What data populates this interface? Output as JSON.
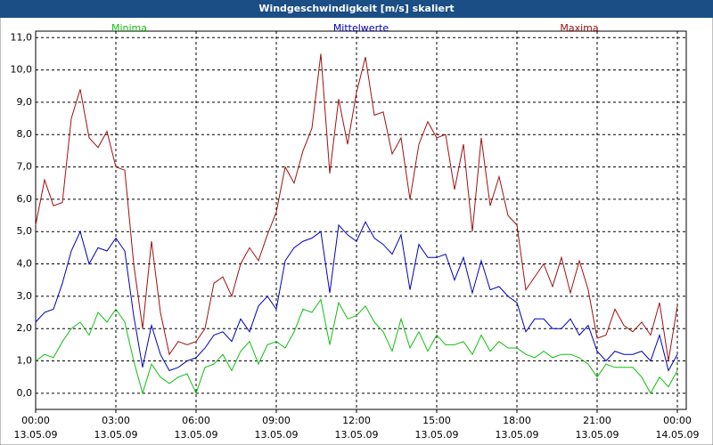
{
  "chart_data": {
    "type": "line",
    "title": "Windgeschwindigkeit [m/s] skaliert",
    "x": [
      0,
      20,
      40,
      60,
      80,
      100,
      120,
      140,
      160,
      180,
      200,
      220,
      240,
      260,
      280,
      300,
      320,
      340,
      360,
      380,
      400,
      420,
      440,
      460,
      480,
      500,
      520,
      540,
      560,
      580,
      600,
      620,
      640,
      660,
      680,
      700,
      720,
      740,
      760,
      780,
      800,
      820,
      840,
      860,
      880,
      900,
      920,
      940,
      960,
      980,
      1000,
      1020,
      1040,
      1060,
      1080,
      1100,
      1120,
      1140,
      1160,
      1180,
      1200,
      1220,
      1240,
      1260,
      1280,
      1300,
      1320,
      1340,
      1360,
      1380,
      1400,
      1420,
      1440
    ],
    "series": [
      {
        "name": "Minima",
        "color": "#10c010",
        "values": [
          1.0,
          1.2,
          1.1,
          1.6,
          2.0,
          2.2,
          1.8,
          2.5,
          2.2,
          2.6,
          2.2,
          1.0,
          0.0,
          0.9,
          0.5,
          0.3,
          0.5,
          0.6,
          0.0,
          0.8,
          0.9,
          1.2,
          0.7,
          1.3,
          1.6,
          0.9,
          1.5,
          1.6,
          1.4,
          1.9,
          2.6,
          2.5,
          2.9,
          1.5,
          2.8,
          2.3,
          2.4,
          2.7,
          2.2,
          1.9,
          1.3,
          2.3,
          1.4,
          1.9,
          1.3,
          1.8,
          1.5,
          1.5,
          1.6,
          1.2,
          1.8,
          1.3,
          1.6,
          1.4,
          1.4,
          1.2,
          1.1,
          1.3,
          1.1,
          1.2,
          1.2,
          1.1,
          0.9,
          0.5,
          0.9,
          0.8,
          0.8,
          0.8,
          0.5,
          0.0,
          0.5,
          0.2,
          0.7
        ]
      },
      {
        "name": "Mittelwerte",
        "color": "#0000c0",
        "values": [
          2.2,
          2.5,
          2.6,
          3.4,
          4.4,
          5.0,
          4.0,
          4.5,
          4.4,
          4.8,
          4.4,
          2.4,
          0.8,
          2.1,
          1.2,
          0.7,
          0.8,
          1.0,
          1.1,
          1.4,
          1.8,
          1.9,
          1.6,
          2.3,
          1.9,
          2.7,
          3.0,
          2.6,
          4.1,
          4.5,
          4.7,
          4.8,
          5.0,
          3.1,
          5.2,
          4.9,
          4.7,
          5.3,
          4.8,
          4.6,
          4.3,
          4.9,
          3.2,
          4.6,
          4.2,
          4.2,
          4.3,
          3.5,
          4.2,
          3.1,
          4.1,
          3.2,
          3.3,
          3.0,
          2.8,
          1.9,
          2.3,
          2.3,
          2.0,
          2.0,
          2.3,
          1.8,
          2.1,
          1.3,
          1.0,
          1.3,
          1.2,
          1.2,
          1.3,
          1.0,
          1.8,
          0.7,
          1.2
        ]
      },
      {
        "name": "Maxima",
        "color": "#a01010",
        "values": [
          5.2,
          6.6,
          5.8,
          5.9,
          8.5,
          9.4,
          7.9,
          7.6,
          8.1,
          7.0,
          6.9,
          4.0,
          2.0,
          4.7,
          2.5,
          1.2,
          1.6,
          1.5,
          1.6,
          2.0,
          3.4,
          3.6,
          3.0,
          4.0,
          4.5,
          4.1,
          4.9,
          5.6,
          7.0,
          6.5,
          7.5,
          8.2,
          10.5,
          6.8,
          9.1,
          7.7,
          9.3,
          10.4,
          8.6,
          8.7,
          7.4,
          7.9,
          6.0,
          7.7,
          8.4,
          7.9,
          8.0,
          6.3,
          7.7,
          5.0,
          7.9,
          5.8,
          6.7,
          5.5,
          5.2,
          3.2,
          3.6,
          4.0,
          3.3,
          4.2,
          3.1,
          4.1,
          3.2,
          1.7,
          1.8,
          2.6,
          2.1,
          1.9,
          2.2,
          1.8,
          2.8,
          1.0,
          2.7
        ]
      }
    ],
    "xlim": [
      0,
      1460
    ],
    "xticks": [
      {
        "value": 0,
        "label": "00:00"
      },
      {
        "value": 180,
        "label": "03:00"
      },
      {
        "value": 360,
        "label": "06:00"
      },
      {
        "value": 540,
        "label": "09:00"
      },
      {
        "value": 720,
        "label": "12:00"
      },
      {
        "value": 900,
        "label": "15:00"
      },
      {
        "value": 1080,
        "label": "18:00"
      },
      {
        "value": 1260,
        "label": "21:00"
      },
      {
        "value": 1440,
        "label": "00:00"
      }
    ],
    "xtick_dates": [
      "13.05.09",
      "13.05.09",
      "13.05.09",
      "13.05.09",
      "13.05.09",
      "13.05.09",
      "13.05.09",
      "13.05.09",
      "14.05.09"
    ],
    "ylim": [
      -0.5,
      11.2
    ],
    "yticks": [
      {
        "value": 0,
        "label": "0,0"
      },
      {
        "value": 1,
        "label": "1,0"
      },
      {
        "value": 2,
        "label": "2,0"
      },
      {
        "value": 3,
        "label": "3,0"
      },
      {
        "value": 4,
        "label": "4,0"
      },
      {
        "value": 5,
        "label": "5,0"
      },
      {
        "value": 6,
        "label": "6,0"
      },
      {
        "value": 7,
        "label": "7,0"
      },
      {
        "value": 8,
        "label": "8,0"
      },
      {
        "value": 9,
        "label": "9,0"
      },
      {
        "value": 10,
        "label": "10,0"
      },
      {
        "value": 11,
        "label": "11,0"
      }
    ],
    "grid": true
  }
}
